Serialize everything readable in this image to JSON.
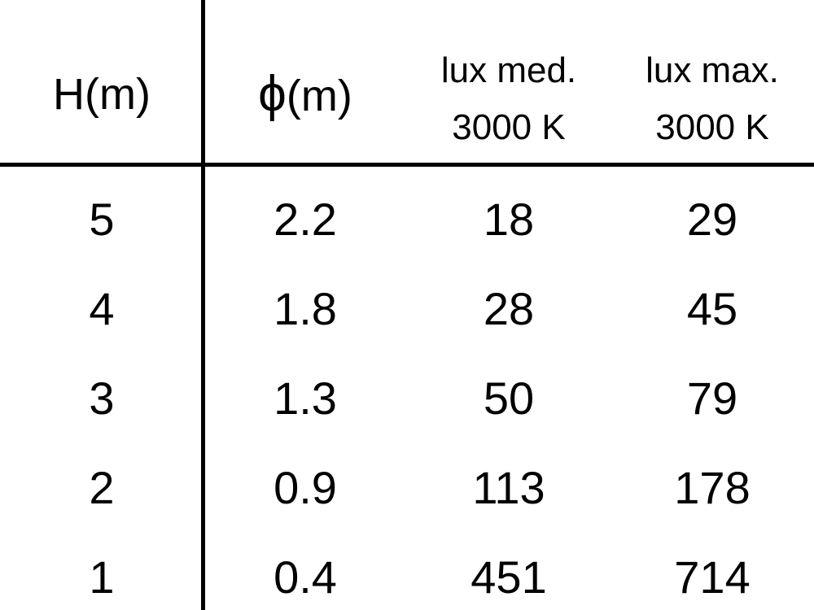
{
  "headers": [
    {
      "line1": "H(m)"
    },
    {
      "symbol": "ϕ",
      "line1": "(m)"
    },
    {
      "line1": "lux med.",
      "line2": "3000 K"
    },
    {
      "line1": "lux max.",
      "line2": "3000 K"
    }
  ],
  "rows": [
    [
      "5",
      "2.2",
      "18",
      "29"
    ],
    [
      "4",
      "1.8",
      "28",
      "45"
    ],
    [
      "3",
      "1.3",
      "50",
      "79"
    ],
    [
      "2",
      "0.9",
      "113",
      "178"
    ],
    [
      "1",
      "0.4",
      "451",
      "714"
    ]
  ]
}
